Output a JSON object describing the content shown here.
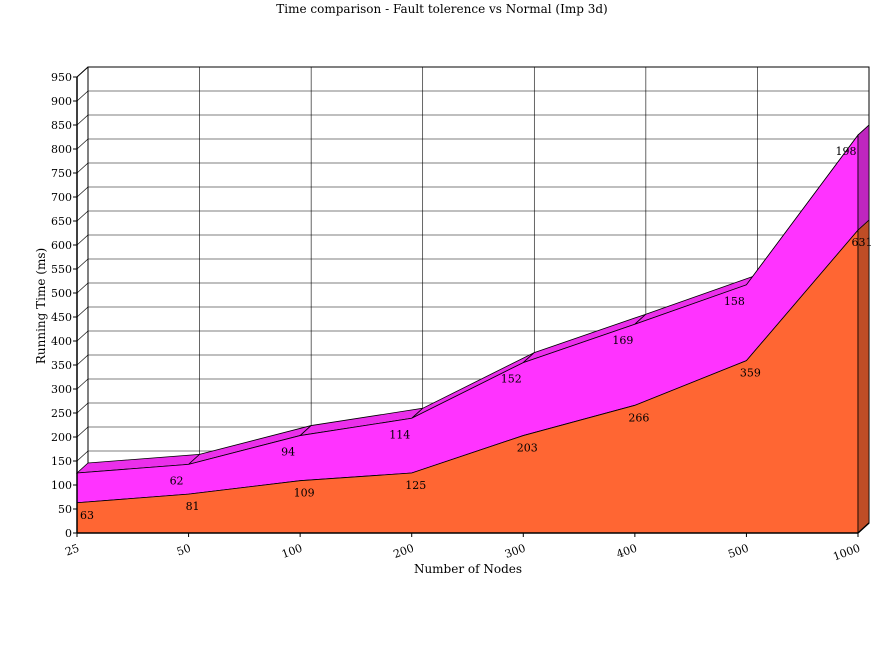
{
  "chart_data": {
    "type": "area",
    "stacked": true,
    "three_d": true,
    "title": "Time comparison - Fault tolerence vs Normal (Imp 3d)",
    "xlabel": "Number of Nodes",
    "ylabel": "Running Time (ms)",
    "categories": [
      "25",
      "50",
      "100",
      "200",
      "300",
      "400",
      "500",
      "1000"
    ],
    "ylim": [
      0,
      950
    ],
    "yticks": [
      0,
      50,
      100,
      150,
      200,
      250,
      300,
      350,
      400,
      450,
      500,
      550,
      600,
      650,
      700,
      750,
      800,
      850,
      900,
      950
    ],
    "grid": true,
    "series": [
      {
        "values": [
          63,
          81,
          109,
          125,
          203,
          266,
          359,
          631
        ],
        "color": "#FF6633"
      },
      {
        "values": [
          null,
          62,
          94,
          114,
          152,
          169,
          158,
          198
        ],
        "color": "#FF33FF"
      }
    ]
  }
}
